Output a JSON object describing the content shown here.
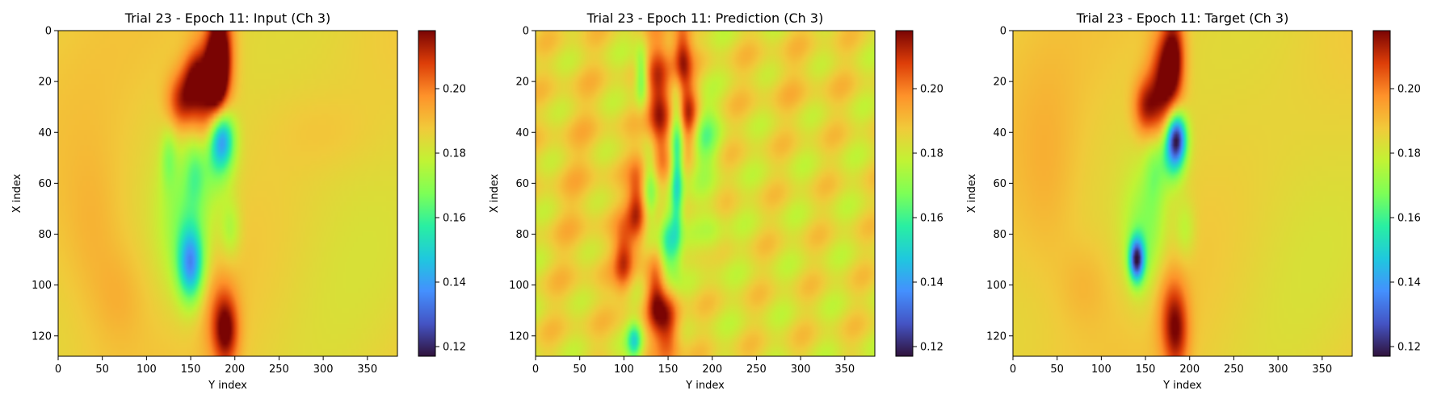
{
  "chart_data": [
    {
      "type": "heatmap",
      "title": "Trial 23 - Epoch 11: Input (Ch 3)",
      "xlabel": "Y index",
      "ylabel": "X index",
      "xlim": [
        0,
        384
      ],
      "ylim": [
        0,
        128
      ],
      "xticks": [
        "0",
        "50",
        "100",
        "150",
        "200",
        "250",
        "300",
        "350"
      ],
      "yticks": [
        "0",
        "20",
        "40",
        "60",
        "80",
        "100",
        "120"
      ],
      "colorbar": {
        "range": [
          0.117,
          0.218
        ],
        "ticks": [
          "0.12",
          "0.14",
          "0.16",
          "0.18",
          "0.20"
        ],
        "colormap": "turbo"
      },
      "background_value": 0.187,
      "features": [
        {
          "x": 170,
          "y": 25,
          "sx": 14,
          "sy": 16,
          "v": 0.03
        },
        {
          "x": 185,
          "y": 8,
          "sx": 10,
          "sy": 14,
          "v": 0.028
        },
        {
          "x": 180,
          "y": 15,
          "sx": 7,
          "sy": 10,
          "v": 0.032
        },
        {
          "x": 140,
          "y": 28,
          "sx": 12,
          "sy": 8,
          "v": 0.026
        },
        {
          "x": 155,
          "y": 18,
          "sx": 10,
          "sy": 7,
          "v": 0.02
        },
        {
          "x": 185,
          "y": 42,
          "sx": 10,
          "sy": 8,
          "v": -0.045
        },
        {
          "x": 178,
          "y": 52,
          "sx": 14,
          "sy": 10,
          "v": -0.015
        },
        {
          "x": 150,
          "y": 92,
          "sx": 10,
          "sy": 10,
          "v": -0.04
        },
        {
          "x": 145,
          "y": 75,
          "sx": 22,
          "sy": 22,
          "v": -0.018
        },
        {
          "x": 195,
          "y": 78,
          "sx": 8,
          "sy": 8,
          "v": -0.012
        },
        {
          "x": 155,
          "y": 55,
          "sx": 8,
          "sy": 10,
          "v": -0.012
        },
        {
          "x": 125,
          "y": 50,
          "sx": 6,
          "sy": 8,
          "v": -0.012
        },
        {
          "x": 190,
          "y": 118,
          "sx": 10,
          "sy": 10,
          "v": 0.028
        },
        {
          "x": 180,
          "y": 110,
          "sx": 14,
          "sy": 14,
          "v": 0.01
        },
        {
          "x": 40,
          "y": 80,
          "sx": 25,
          "sy": 25,
          "v": 0.006
        },
        {
          "x": 70,
          "y": 105,
          "sx": 20,
          "sy": 14,
          "v": 0.005
        },
        {
          "x": 320,
          "y": 60,
          "sx": 60,
          "sy": 50,
          "v": -0.004
        },
        {
          "x": 300,
          "y": 40,
          "sx": 40,
          "sy": 10,
          "v": 0.003
        }
      ]
    },
    {
      "type": "heatmap",
      "title": "Trial 23 - Epoch 11: Prediction (Ch 3)",
      "xlabel": "Y index",
      "ylabel": "X index",
      "xlim": [
        0,
        384
      ],
      "ylim": [
        0,
        128
      ],
      "xticks": [
        "0",
        "50",
        "100",
        "150",
        "200",
        "250",
        "300",
        "350"
      ],
      "yticks": [
        "0",
        "20",
        "40",
        "60",
        "80",
        "100",
        "120"
      ],
      "colorbar": {
        "range": [
          0.117,
          0.218
        ],
        "ticks": [
          "0.12",
          "0.14",
          "0.16",
          "0.18",
          "0.20"
        ],
        "colormap": "turbo"
      },
      "background_value": 0.184,
      "features": [
        {
          "x": 140,
          "y": 30,
          "sx": 10,
          "sy": 20,
          "v": 0.034
        },
        {
          "x": 165,
          "y": 10,
          "sx": 8,
          "sy": 12,
          "v": 0.03
        },
        {
          "x": 115,
          "y": 70,
          "sx": 8,
          "sy": 12,
          "v": 0.028
        },
        {
          "x": 100,
          "y": 90,
          "sx": 8,
          "sy": 10,
          "v": 0.024
        },
        {
          "x": 150,
          "y": 115,
          "sx": 10,
          "sy": 12,
          "v": 0.03
        },
        {
          "x": 135,
          "y": 105,
          "sx": 8,
          "sy": 10,
          "v": 0.022
        },
        {
          "x": 175,
          "y": 35,
          "sx": 8,
          "sy": 10,
          "v": 0.025
        },
        {
          "x": 160,
          "y": 55,
          "sx": 5,
          "sy": 22,
          "v": -0.035
        },
        {
          "x": 150,
          "y": 85,
          "sx": 7,
          "sy": 12,
          "v": -0.03
        },
        {
          "x": 190,
          "y": 42,
          "sx": 12,
          "sy": 10,
          "v": -0.018
        },
        {
          "x": 120,
          "y": 18,
          "sx": 5,
          "sy": 8,
          "v": -0.025
        },
        {
          "x": 112,
          "y": 122,
          "sx": 6,
          "sy": 5,
          "v": -0.03
        },
        {
          "x": 130,
          "y": 60,
          "sx": 6,
          "sy": 12,
          "v": -0.018
        },
        {
          "x": 200,
          "y": 80,
          "sx": 10,
          "sy": 10,
          "v": -0.008
        },
        {
          "x": 50,
          "y": 60,
          "sx": 30,
          "sy": 40,
          "v": 0.004
        },
        {
          "x": 290,
          "y": 20,
          "sx": 50,
          "sy": 12,
          "v": 0.003
        }
      ]
    },
    {
      "type": "heatmap",
      "title": "Trial 23 - Epoch 11: Target (Ch 3)",
      "xlabel": "Y index",
      "ylabel": "X index",
      "xlim": [
        0,
        384
      ],
      "ylim": [
        0,
        128
      ],
      "xticks": [
        "0",
        "50",
        "100",
        "150",
        "200",
        "250",
        "300",
        "350"
      ],
      "yticks": [
        "0",
        "20",
        "40",
        "60",
        "80",
        "100",
        "120"
      ],
      "colorbar": {
        "range": [
          0.117,
          0.218
        ],
        "ticks": [
          "0.12",
          "0.14",
          "0.16",
          "0.18",
          "0.20"
        ],
        "colormap": "turbo"
      },
      "background_value": 0.187,
      "features": [
        {
          "x": 170,
          "y": 22,
          "sx": 12,
          "sy": 14,
          "v": 0.03
        },
        {
          "x": 182,
          "y": 10,
          "sx": 9,
          "sy": 12,
          "v": 0.03
        },
        {
          "x": 150,
          "y": 30,
          "sx": 10,
          "sy": 8,
          "v": 0.024
        },
        {
          "x": 185,
          "y": 42,
          "sx": 8,
          "sy": 7,
          "v": -0.06
        },
        {
          "x": 180,
          "y": 50,
          "sx": 10,
          "sy": 8,
          "v": -0.022
        },
        {
          "x": 140,
          "y": 90,
          "sx": 6,
          "sy": 6,
          "v": -0.06
        },
        {
          "x": 150,
          "y": 80,
          "sx": 18,
          "sy": 18,
          "v": -0.018
        },
        {
          "x": 195,
          "y": 78,
          "sx": 8,
          "sy": 8,
          "v": -0.01
        },
        {
          "x": 160,
          "y": 55,
          "sx": 8,
          "sy": 10,
          "v": -0.012
        },
        {
          "x": 185,
          "y": 118,
          "sx": 10,
          "sy": 12,
          "v": 0.025
        },
        {
          "x": 175,
          "y": 108,
          "sx": 12,
          "sy": 14,
          "v": 0.01
        },
        {
          "x": 40,
          "y": 60,
          "sx": 25,
          "sy": 30,
          "v": 0.005
        },
        {
          "x": 80,
          "y": 100,
          "sx": 20,
          "sy": 12,
          "v": 0.005
        },
        {
          "x": 320,
          "y": 60,
          "sx": 60,
          "sy": 50,
          "v": -0.004
        }
      ]
    }
  ]
}
